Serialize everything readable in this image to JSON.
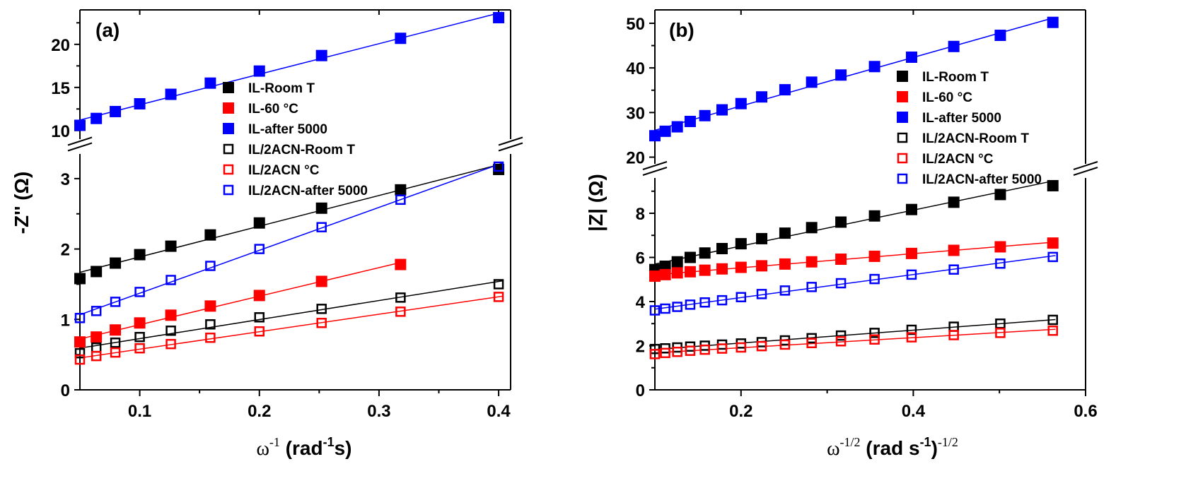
{
  "chart_data": [
    {
      "type": "scatter",
      "panel_label": "(a)",
      "xlabel": "ω",
      "xlabel_sup": "-1",
      "xlabel_units_a": " (rad",
      "xlabel_units_sup": "-1",
      "xlabel_units_b": "s)",
      "ylabel": "-Z'' (Ω)",
      "xlim": [
        0.05,
        0.41
      ],
      "x_ticks": [
        0.1,
        0.2,
        0.3,
        0.4
      ],
      "x_tick_labels": [
        "0.1",
        "0.2",
        "0.3",
        "0.4"
      ],
      "y_lower": {
        "range": [
          0,
          3.35
        ],
        "ticks": [
          0,
          1,
          2,
          3
        ],
        "tick_labels": [
          "0",
          "1",
          "2",
          "3"
        ]
      },
      "y_upper": {
        "range": [
          9.0,
          24.0
        ],
        "ticks": [
          10,
          15,
          20
        ],
        "tick_labels": [
          "10",
          "15",
          "20"
        ]
      },
      "x": [
        0.05,
        0.0637,
        0.0796,
        0.1,
        0.126,
        0.159,
        0.2,
        0.252,
        0.318,
        0.4
      ],
      "series": [
        {
          "name": "IL-Room T",
          "color": "#000000",
          "filled": true,
          "segment": "lower",
          "values": [
            1.58,
            1.68,
            1.8,
            1.92,
            2.04,
            2.2,
            2.37,
            2.58,
            2.84,
            3.13
          ]
        },
        {
          "name": "IL-60 °C",
          "color": "#ff0000",
          "filled": true,
          "segment": "lower",
          "values": [
            0.68,
            0.75,
            0.85,
            0.95,
            1.06,
            1.19,
            1.34,
            1.54,
            1.78,
            null
          ]
        },
        {
          "name": "IL-after 5000",
          "color": "#0000ff",
          "filled": true,
          "segment": "upper",
          "values": [
            10.6,
            11.4,
            12.2,
            13.1,
            14.2,
            15.5,
            16.9,
            18.7,
            20.7,
            23.1
          ]
        },
        {
          "name": "IL/2ACN-Room T",
          "color": "#000000",
          "filled": false,
          "segment": "lower",
          "values": [
            0.52,
            0.6,
            0.67,
            0.75,
            0.84,
            0.93,
            1.03,
            1.15,
            1.31,
            1.5
          ]
        },
        {
          "name": "IL/2ACN °C",
          "color": "#ff0000",
          "filled": false,
          "segment": "lower",
          "values": [
            0.43,
            0.48,
            0.53,
            0.59,
            0.65,
            0.74,
            0.83,
            0.95,
            1.11,
            1.32
          ]
        },
        {
          "name": "IL/2ACN-after 5000",
          "color": "#0000ff",
          "filled": false,
          "segment": "lower",
          "values": [
            1.02,
            1.12,
            1.25,
            1.39,
            1.56,
            1.76,
            2.0,
            2.31,
            2.7,
            3.17
          ]
        }
      ],
      "legend_position": "center-right"
    },
    {
      "type": "scatter",
      "panel_label": "(b)",
      "xlabel": "ω",
      "xlabel_sup": "-1/2",
      "xlabel_units_a": " (rad s",
      "xlabel_units_sup": "-1",
      "xlabel_units_b": ")",
      "xlabel_units_sup2": "-1/2",
      "ylabel": "|Z| (Ω)",
      "xlim": [
        0.1,
        0.6
      ],
      "x_ticks": [
        0.2,
        0.4,
        0.6
      ],
      "x_tick_labels": [
        "0.2",
        "0.4",
        "0.6"
      ],
      "y_lower": {
        "range": [
          0,
          9.6
        ],
        "ticks": [
          0,
          2,
          4,
          6,
          8
        ],
        "tick_labels": [
          "0",
          "2",
          "4",
          "6",
          "8"
        ]
      },
      "y_upper": {
        "range": [
          18.5,
          53.0
        ],
        "ticks": [
          20,
          30,
          40,
          50
        ],
        "tick_labels": [
          "20",
          "30",
          "40",
          "50"
        ]
      },
      "x": [
        0.1,
        0.112,
        0.126,
        0.141,
        0.158,
        0.178,
        0.2,
        0.224,
        0.251,
        0.282,
        0.316,
        0.355,
        0.398,
        0.447,
        0.501,
        0.562
      ],
      "series": [
        {
          "name": "IL-Room T",
          "color": "#000000",
          "filled": true,
          "segment": "lower",
          "values": [
            5.45,
            5.6,
            5.8,
            6.0,
            6.2,
            6.4,
            6.62,
            6.85,
            7.1,
            7.35,
            7.6,
            7.88,
            8.17,
            8.5,
            8.85,
            9.25
          ]
        },
        {
          "name": "IL-60 °C",
          "color": "#ff0000",
          "filled": true,
          "segment": "lower",
          "values": [
            5.15,
            5.22,
            5.3,
            5.35,
            5.42,
            5.48,
            5.55,
            5.62,
            5.7,
            5.8,
            5.92,
            6.05,
            6.18,
            6.32,
            6.48,
            6.65
          ]
        },
        {
          "name": "IL-after 5000",
          "color": "#0000ff",
          "filled": true,
          "segment": "upper",
          "values": [
            24.8,
            25.8,
            26.8,
            28.0,
            29.3,
            30.6,
            32.0,
            33.5,
            35.1,
            36.8,
            38.4,
            40.3,
            42.4,
            44.8,
            47.3,
            50.2
          ]
        },
        {
          "name": "IL/2ACN-Room T",
          "color": "#000000",
          "filled": false,
          "segment": "lower",
          "values": [
            1.85,
            1.88,
            1.92,
            1.96,
            2.0,
            2.05,
            2.1,
            2.16,
            2.24,
            2.34,
            2.46,
            2.58,
            2.72,
            2.86,
            3.0,
            3.17
          ]
        },
        {
          "name": "IL/2ACN °C",
          "color": "#ff0000",
          "filled": false,
          "segment": "lower",
          "values": [
            1.62,
            1.67,
            1.72,
            1.77,
            1.82,
            1.87,
            1.92,
            1.98,
            2.05,
            2.12,
            2.2,
            2.28,
            2.38,
            2.48,
            2.58,
            2.68
          ]
        },
        {
          "name": "IL/2ACN-after 5000",
          "color": "#0000ff",
          "filled": false,
          "segment": "lower",
          "values": [
            3.6,
            3.68,
            3.76,
            3.86,
            3.96,
            4.06,
            4.2,
            4.34,
            4.5,
            4.66,
            4.83,
            5.02,
            5.22,
            5.45,
            5.72,
            6.02
          ]
        }
      ],
      "legend_position": "center-right"
    }
  ]
}
